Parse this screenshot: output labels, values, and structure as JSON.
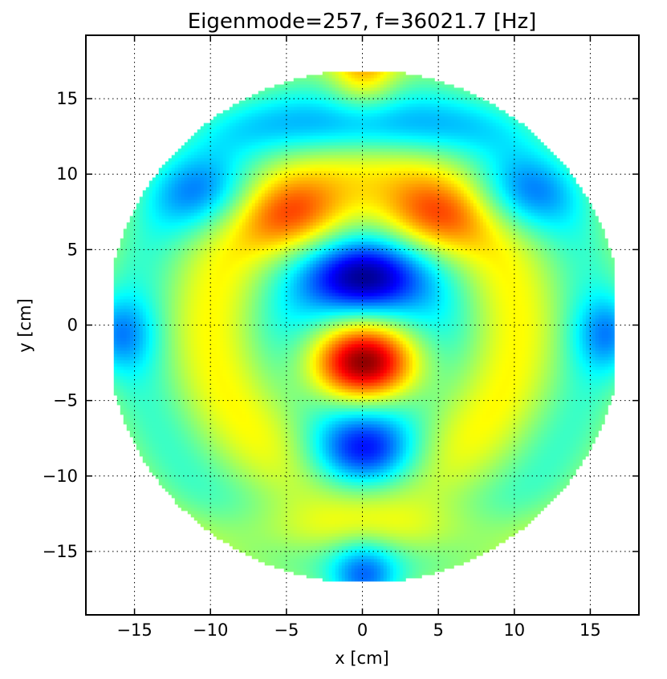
{
  "chart_data": {
    "type": "heatmap",
    "title": "Eigenmode=257, f=36021.7 [Hz]",
    "xlabel": "x [cm]",
    "ylabel": "y [cm]",
    "xlim": [
      -18.2,
      18.2
    ],
    "ylim": [
      -19.2,
      19.2
    ],
    "xticks": [
      {
        "value": -15,
        "label": "−15"
      },
      {
        "value": -10,
        "label": "−10"
      },
      {
        "value": -5,
        "label": "−5"
      },
      {
        "value": 0,
        "label": "0"
      },
      {
        "value": 5,
        "label": "5"
      },
      {
        "value": 10,
        "label": "10"
      },
      {
        "value": 15,
        "label": "15"
      }
    ],
    "yticks": [
      {
        "value": 15,
        "label": "15"
      },
      {
        "value": 10,
        "label": "10"
      },
      {
        "value": 5,
        "label": "5"
      },
      {
        "value": 0,
        "label": "0"
      },
      {
        "value": -5,
        "label": "−5"
      },
      {
        "value": -10,
        "label": "−10"
      },
      {
        "value": -15,
        "label": "−15"
      }
    ],
    "grid": true,
    "colormap": "jet",
    "domain": {
      "shape": "circle",
      "center": [
        0,
        0
      ],
      "radius": 17,
      "clipped_x": [
        -16.4,
        16.4
      ]
    },
    "field_features": [
      {
        "x": 0,
        "y": -2.6,
        "value": 1.0,
        "desc": "central maximum (dark red)"
      },
      {
        "x": 0,
        "y": 3.0,
        "value": -0.9,
        "desc": "upper minimum (dark blue)"
      },
      {
        "x": 0,
        "y": -8.4,
        "value": -0.85,
        "desc": "lower minimum (dark blue)"
      },
      {
        "x": -4.5,
        "y": 7.2,
        "value": 0.45,
        "desc": "upper-left orange lobe"
      },
      {
        "x": 4.5,
        "y": 7.2,
        "value": 0.45,
        "desc": "upper-right orange lobe"
      },
      {
        "x": -10.5,
        "y": 8.8,
        "value": -0.4,
        "desc": "upper-left blue band"
      },
      {
        "x": 10.5,
        "y": 8.8,
        "value": -0.4,
        "desc": "upper-right blue band"
      },
      {
        "x": 0,
        "y": 13.2,
        "value": -0.35,
        "desc": "upper blue arc"
      },
      {
        "x": 0,
        "y": 17.0,
        "value": 0.45,
        "desc": "top edge orange"
      },
      {
        "x": -16.2,
        "y": -0.5,
        "value": -0.4,
        "desc": "left edge blue"
      },
      {
        "x": 16.2,
        "y": -0.5,
        "value": -0.4,
        "desc": "right edge blue"
      },
      {
        "x": 0,
        "y": -13.5,
        "value": 0.3,
        "desc": "lower yellow arc"
      },
      {
        "x": 0,
        "y": -16.6,
        "value": -0.5,
        "desc": "bottom edge blue"
      },
      {
        "x": 0,
        "y": 0,
        "value": -0.2,
        "desc": "ring between center and upper minimum"
      }
    ]
  }
}
